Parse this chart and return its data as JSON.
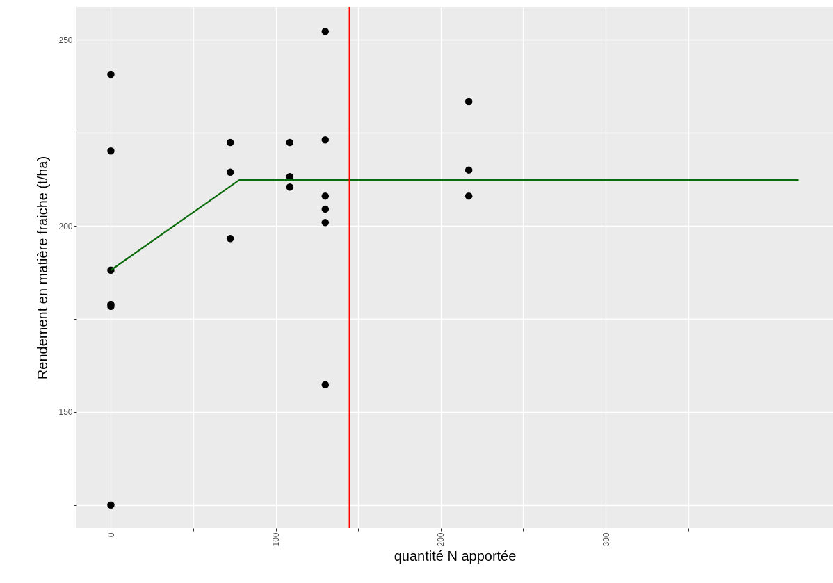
{
  "chart_data": {
    "type": "scatter",
    "xlabel": "quantité N apportée",
    "ylabel": "Rendement en matière fraiche (t/ha)",
    "xlim": [
      -20.85,
      437.85
    ],
    "ylim": [
      118.8,
      258.8
    ],
    "xticks": [
      0,
      {
        "value": 50,
        "label": null
      },
      100,
      {
        "value": 150,
        "label": null
      },
      200,
      {
        "value": 250,
        "label": null
      },
      300,
      {
        "value": 350,
        "label": null
      }
    ],
    "yticks": [
      {
        "value": 125,
        "label": null
      },
      150,
      {
        "value": 175,
        "label": null
      },
      200,
      {
        "value": 225,
        "label": null
      },
      250
    ],
    "grid": true,
    "series": [
      {
        "type": "scatter",
        "marker": "circle",
        "color": "#000000",
        "x": [
          0,
          0,
          0,
          0,
          0,
          0,
          72.4,
          72.4,
          72.4,
          108.5,
          108.5,
          108.5,
          130,
          130,
          130,
          130,
          130,
          130,
          217,
          217,
          217
        ],
        "values": [
          240.7,
          220.1,
          188.1,
          178.9,
          178.4,
          125.0,
          222.4,
          214.4,
          196.6,
          222.4,
          213.2,
          210.4,
          252.2,
          223.1,
          208.0,
          204.5,
          200.9,
          157.3,
          233.4,
          215.0,
          208.0
        ]
      },
      {
        "type": "line",
        "color": "#0a6b0a",
        "x": [
          0,
          77.8,
          417
        ],
        "values": [
          188.1,
          212.3,
          212.3
        ]
      }
    ],
    "ref_lines": [
      {
        "axis": "x",
        "value": 144.7,
        "color": "#ff0000"
      }
    ]
  }
}
